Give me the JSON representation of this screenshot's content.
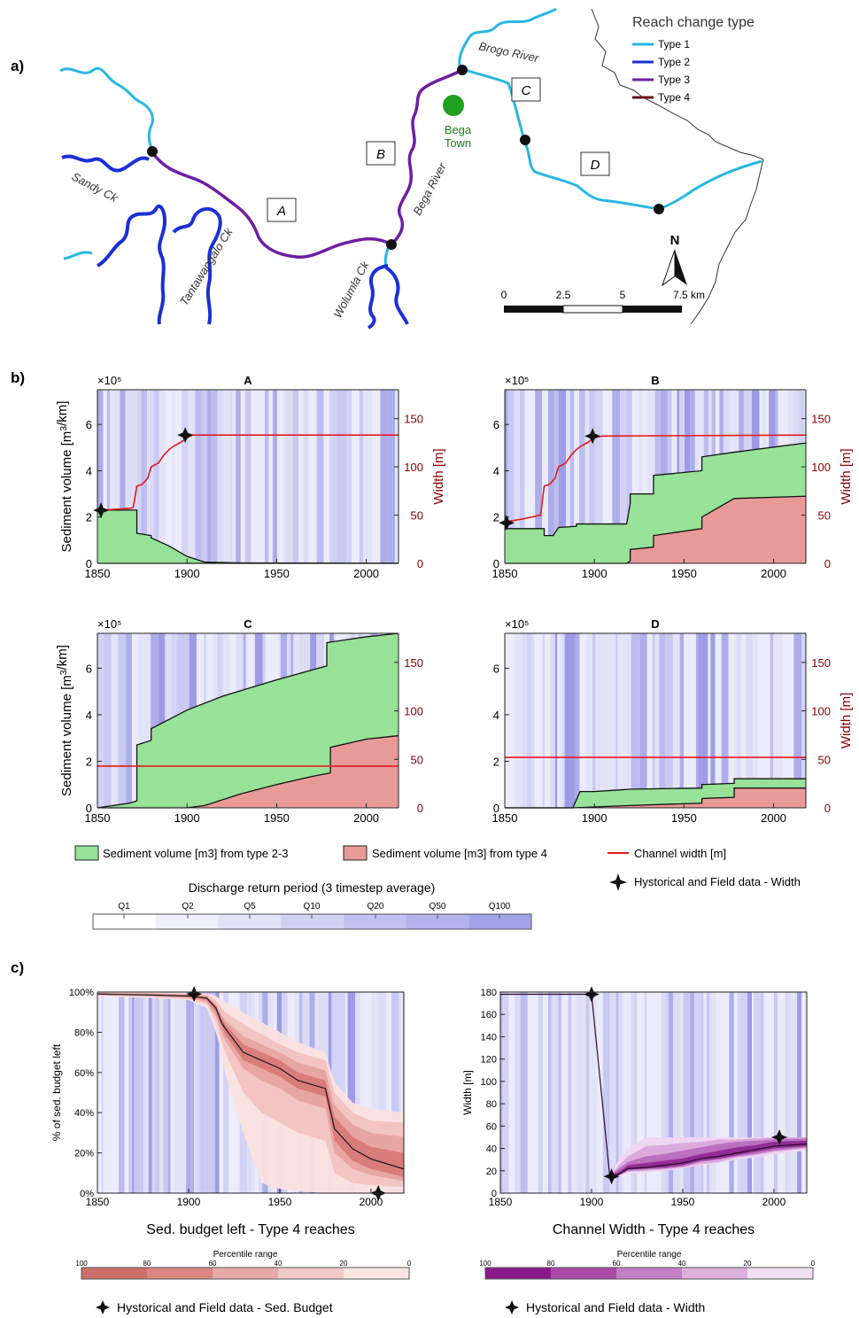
{
  "panel_labels": [
    "a)",
    "b)",
    "c)"
  ],
  "map": {
    "legend_title": "Reach change type",
    "legend_items": [
      {
        "label": "Type 1",
        "color": "#29b6e3"
      },
      {
        "label": "Type 2",
        "color": "#1a2fd6"
      },
      {
        "label": "Type 3",
        "color": "#6e1ea3"
      },
      {
        "label": "Type 4",
        "color": "#6b0f1a"
      }
    ],
    "reach_labels": [
      "A",
      "B",
      "C",
      "D"
    ],
    "place_labels": {
      "brogo": "Brogo River",
      "bega_river": "Bega River",
      "sandy": "Sandy Ck",
      "tantawangalo": "Tantawangalo Ck",
      "wolumla": "Wolumla Ck",
      "town": [
        "Bega",
        "Town"
      ]
    },
    "town_color": "#1fa01f",
    "north_label": "N",
    "scale_ticks": [
      "0",
      "2.5",
      "5",
      "7.5 km"
    ]
  },
  "chart_data": [
    {
      "type": "area",
      "title": "A",
      "ylabel": "Sediment volume [m3/km]",
      "y2label": "Width [m]",
      "multiplier": "×10⁵",
      "x_range": [
        1850,
        2018
      ],
      "ylim": [
        0,
        7.5
      ],
      "y2lim": [
        0,
        180
      ],
      "xticks": [
        1850,
        1900,
        1950,
        2000
      ],
      "yticks": [
        0,
        2,
        4,
        6
      ],
      "y2ticks": [
        0,
        50,
        100,
        150
      ],
      "series": [
        {
          "name": "Sediment volume [m3] from type 2-3",
          "x": [
            1850,
            1872,
            1872,
            1880,
            1880,
            1890,
            1900,
            1910,
            1930,
            2018
          ],
          "y": [
            2.3,
            2.3,
            1.3,
            1.2,
            1.1,
            0.75,
            0.3,
            0.05,
            0.02,
            0.0
          ]
        },
        {
          "name": "Sediment volume [m3] from type 4",
          "x": [
            1850,
            2018
          ],
          "y": [
            0,
            0
          ]
        }
      ],
      "width": {
        "name": "Channel width [m]",
        "x": [
          1850,
          1868,
          1870,
          1872,
          1875,
          1878,
          1880,
          1884,
          1887,
          1890,
          1893,
          1896,
          1900,
          1903,
          2018
        ],
        "y": [
          55,
          57,
          58,
          80,
          82,
          88,
          100,
          104,
          112,
          118,
          122,
          125,
          130,
          133,
          133
        ]
      },
      "field_points": [
        {
          "x": 1852,
          "y": 55
        },
        {
          "x": 1899,
          "y": 133
        }
      ]
    },
    {
      "type": "area",
      "title": "B",
      "ylabel": "",
      "y2label": "Width [m]",
      "multiplier": "×10⁵",
      "x_range": [
        1850,
        2018
      ],
      "ylim": [
        0,
        7.5
      ],
      "y2lim": [
        0,
        180
      ],
      "xticks": [
        1850,
        1900,
        1950,
        2000
      ],
      "yticks": [
        0,
        2,
        4,
        6
      ],
      "y2ticks": [
        0,
        50,
        100,
        150
      ],
      "series": [
        {
          "name": "Sediment volume [m3] from type 2-3",
          "x": [
            1850,
            1872,
            1872,
            1877,
            1880,
            1880,
            1890,
            1890,
            1918,
            1920,
            1920,
            1933,
            1933,
            1960,
            1960,
            1978,
            2018
          ],
          "y": [
            1.5,
            1.5,
            1.2,
            1.2,
            1.55,
            1.55,
            1.6,
            1.7,
            1.7,
            2.6,
            3.0,
            3.0,
            3.8,
            4.0,
            4.6,
            4.8,
            5.2
          ]
        },
        {
          "name": "Sediment volume [m3] from type 4",
          "x": [
            1850,
            1918,
            1920,
            1920,
            1933,
            1933,
            1960,
            1960,
            1978,
            2018
          ],
          "y": [
            0,
            0,
            0.1,
            0.6,
            0.7,
            1.2,
            1.5,
            2.0,
            2.8,
            2.9
          ]
        }
      ],
      "width": {
        "name": "Channel width [m]",
        "x": [
          1850,
          1860,
          1870,
          1872,
          1875,
          1878,
          1880,
          1884,
          1887,
          1890,
          1893,
          1896,
          1900,
          1904,
          2018
        ],
        "y": [
          43,
          46,
          50,
          80,
          82,
          88,
          100,
          104,
          112,
          118,
          122,
          125,
          130,
          132,
          133
        ]
      },
      "field_points": [
        {
          "x": 1851,
          "y": 42
        },
        {
          "x": 1899,
          "y": 132
        }
      ]
    },
    {
      "type": "area",
      "title": "C",
      "ylabel": "Sediment volume [m3/km]",
      "y2label": "",
      "multiplier": "×10⁵",
      "x_range": [
        1850,
        2018
      ],
      "ylim": [
        0,
        7.5
      ],
      "y2lim": [
        0,
        180
      ],
      "xticks": [
        1850,
        1900,
        1950,
        2000
      ],
      "yticks": [
        0,
        2,
        4,
        6
      ],
      "y2ticks": [
        0,
        50,
        100,
        150
      ],
      "series": [
        {
          "name": "Sediment volume [m3] from type 2-3",
          "x": [
            1850,
            1868,
            1872,
            1872,
            1880,
            1880,
            1890,
            1900,
            1920,
            1950,
            1978,
            1978,
            2000,
            2018
          ],
          "y": [
            0,
            0.2,
            0.3,
            2.7,
            2.9,
            3.4,
            3.8,
            4.2,
            4.8,
            5.5,
            6.1,
            7.1,
            7.35,
            7.5
          ]
        },
        {
          "name": "Sediment volume [m3] from type 4",
          "x": [
            1850,
            1900,
            1910,
            1930,
            1950,
            1970,
            1980,
            1980,
            2000,
            2018
          ],
          "y": [
            0,
            0,
            0.1,
            0.6,
            1.0,
            1.35,
            1.5,
            2.6,
            2.95,
            3.1
          ]
        }
      ],
      "width": {
        "name": "Channel width [m]",
        "x": [
          1850,
          2018
        ],
        "y": [
          43,
          43
        ]
      },
      "field_points": []
    },
    {
      "type": "area",
      "title": "D",
      "ylabel": "",
      "y2label": "Width [m]",
      "multiplier": "×10⁵",
      "x_range": [
        1850,
        2018
      ],
      "ylim": [
        0,
        7.5
      ],
      "y2lim": [
        0,
        180
      ],
      "xticks": [
        1850,
        1900,
        1950,
        2000
      ],
      "yticks": [
        0,
        2,
        4,
        6
      ],
      "y2ticks": [
        0,
        50,
        100,
        150
      ],
      "series": [
        {
          "name": "Sediment volume [m3] from type 2-3",
          "x": [
            1850,
            1888,
            1892,
            1900,
            1910,
            1920,
            1960,
            1960,
            1978,
            1978,
            2018
          ],
          "y": [
            0,
            0,
            0.7,
            0.7,
            0.75,
            0.8,
            0.85,
            1.0,
            1.05,
            1.25,
            1.25
          ]
        },
        {
          "name": "Sediment volume [m3] from type 4",
          "x": [
            1850,
            1888,
            1920,
            1960,
            1960,
            1978,
            1978,
            2018
          ],
          "y": [
            0,
            0,
            0.1,
            0.2,
            0.4,
            0.45,
            0.85,
            0.85
          ]
        }
      ],
      "width": {
        "name": "Channel width [m]",
        "x": [
          1850,
          2018
        ],
        "y": [
          52,
          52
        ]
      },
      "field_points": []
    },
    {
      "type": "area",
      "title": "Sed. budget left - Type 4 reaches",
      "ylabel": "% of sed. budget left",
      "x_range": [
        1850,
        2018
      ],
      "ylim": [
        0,
        100
      ],
      "xticks": [
        1850,
        1900,
        1950,
        2000
      ],
      "yticks": [
        "0%",
        "20%",
        "40%",
        "60%",
        "80%",
        "100%"
      ],
      "median": {
        "x": [
          1850,
          1880,
          1900,
          1910,
          1915,
          1918,
          1920,
          1930,
          1940,
          1950,
          1960,
          1975,
          1980,
          1990,
          2000,
          2018
        ],
        "y": [
          99,
          98.5,
          98,
          97,
          92,
          85,
          82,
          70,
          66,
          62,
          56,
          52,
          32,
          22,
          17,
          12
        ]
      },
      "bands": [
        {
          "range": "0-20",
          "upper": [
            100,
            99.8,
            99.5,
            99.2,
            98,
            96,
            95,
            90,
            85,
            80,
            75,
            70,
            55,
            45,
            42,
            40
          ],
          "lower": [
            98,
            97,
            96,
            92,
            80,
            70,
            60,
            30,
            5,
            2,
            1,
            0,
            0,
            0,
            0,
            0
          ]
        },
        {
          "range": "20-40",
          "upper": [
            99.8,
            99.5,
            99.2,
            98.8,
            96,
            92,
            90,
            84,
            79,
            74,
            70,
            66,
            50,
            40,
            36,
            35
          ],
          "lower": [
            98.3,
            97.5,
            96.5,
            94,
            85,
            76,
            70,
            50,
            40,
            35,
            30,
            26,
            10,
            5,
            4,
            3
          ]
        },
        {
          "range": "40-60",
          "upper": [
            99.5,
            99.2,
            98.8,
            98,
            94,
            89,
            86,
            78,
            74,
            70,
            65,
            61,
            44,
            34,
            30,
            28
          ],
          "lower": [
            98.6,
            98,
            97,
            95,
            88,
            80,
            76,
            62,
            56,
            52,
            46,
            42,
            20,
            12,
            9,
            6
          ]
        },
        {
          "range": "60-80",
          "upper": [
            99.3,
            98.9,
            98.5,
            97.6,
            93,
            87,
            84,
            74,
            70,
            66,
            60,
            56,
            38,
            28,
            23,
            20
          ],
          "lower": [
            98.8,
            98.2,
            97.5,
            96,
            90,
            83,
            79,
            66,
            62,
            58,
            52,
            48,
            26,
            16,
            12,
            8
          ]
        }
      ],
      "field_points": [
        {
          "x": 1903,
          "y": 99
        },
        {
          "x": 2004,
          "y": 0
        }
      ],
      "legend_title": "Percentile range",
      "legend_ticks": [
        "100",
        "80",
        "60",
        "40",
        "20",
        "0"
      ],
      "legend_colors": [
        "#cc6f6a",
        "#d98683",
        "#e6a9a5",
        "#f1cbc8",
        "#fbe6e4"
      ],
      "field_label": "Hystorical and Field data - Sed. Budget"
    },
    {
      "type": "area",
      "title": "Channel Width - Type 4 reaches",
      "ylabel": "Width [m]",
      "x_range": [
        1850,
        2018
      ],
      "ylim": [
        0,
        180
      ],
      "xticks": [
        1850,
        1900,
        1950,
        2000
      ],
      "yticks": [
        0,
        20,
        40,
        60,
        80,
        100,
        120,
        140,
        160,
        180
      ],
      "median": {
        "x": [
          1850,
          1900,
          1910,
          1915,
          1920,
          1930,
          1940,
          1950,
          1960,
          1970,
          1980,
          1990,
          2000,
          2018
        ],
        "y": [
          178,
          178,
          15,
          17,
          22,
          23,
          25,
          27,
          31,
          33,
          36,
          39,
          42,
          44
        ]
      },
      "bands": [
        {
          "range": "0-20",
          "upper": [
            178,
            178,
            15,
            30,
            40,
            50,
            50,
            50,
            50,
            50,
            50,
            50,
            50,
            50
          ],
          "lower": [
            178,
            178,
            15,
            15,
            18,
            18,
            20,
            22,
            25,
            27,
            30,
            32,
            35,
            38
          ]
        },
        {
          "range": "20-40",
          "upper": [
            178,
            178,
            15,
            25,
            33,
            42,
            43,
            45,
            46,
            48,
            48,
            49,
            50,
            50
          ],
          "lower": [
            178,
            178,
            15,
            16,
            19,
            20,
            21,
            23,
            26,
            28,
            32,
            34,
            37,
            40
          ]
        },
        {
          "range": "40-60",
          "upper": [
            178,
            178,
            15,
            22,
            28,
            33,
            35,
            38,
            41,
            44,
            46,
            47,
            48,
            49
          ],
          "lower": [
            178,
            178,
            15,
            16,
            20,
            21,
            22,
            24,
            28,
            30,
            33,
            35,
            38,
            41
          ]
        },
        {
          "range": "60-80",
          "upper": [
            178,
            178,
            15,
            19,
            25,
            27,
            29,
            31,
            35,
            38,
            41,
            43,
            46,
            47
          ],
          "lower": [
            178,
            178,
            15,
            16,
            21,
            22,
            23,
            25,
            29,
            31,
            34,
            37,
            40,
            42
          ]
        }
      ],
      "field_points": [
        {
          "x": 1900,
          "y": 178
        },
        {
          "x": 1911,
          "y": 15
        },
        {
          "x": 2003,
          "y": 50
        }
      ],
      "legend_title": "Percentile range",
      "legend_ticks": [
        "100",
        "80",
        "60",
        "40",
        "20",
        "0"
      ],
      "legend_colors": [
        "#8a1a8c",
        "#a94aa9",
        "#c27fc4",
        "#dbb0dc",
        "#f1dff2"
      ],
      "field_label": "Hystorical and Field data - Width"
    }
  ],
  "legend_b": {
    "green": "Sediment volume [m3] from type 2-3",
    "pink": "Sediment volume [m3] from type 4",
    "red": "Channel width [m]",
    "star": "Hystorical and Field data - Width",
    "colors": {
      "green": "#97e298",
      "pink": "#e89a99",
      "red": "#e41a1c"
    }
  },
  "discharge_legend": {
    "title": "Discharge return period (3 timestep average)",
    "ticks": [
      "Q1",
      "Q2",
      "Q5",
      "Q10",
      "Q20",
      "Q50",
      "Q100"
    ],
    "colors": [
      "#ffffff",
      "#f0f0fc",
      "#e1e1f8",
      "#d1d1f4",
      "#c2c2f0",
      "#b2b2ec",
      "#a3a3e8"
    ]
  }
}
